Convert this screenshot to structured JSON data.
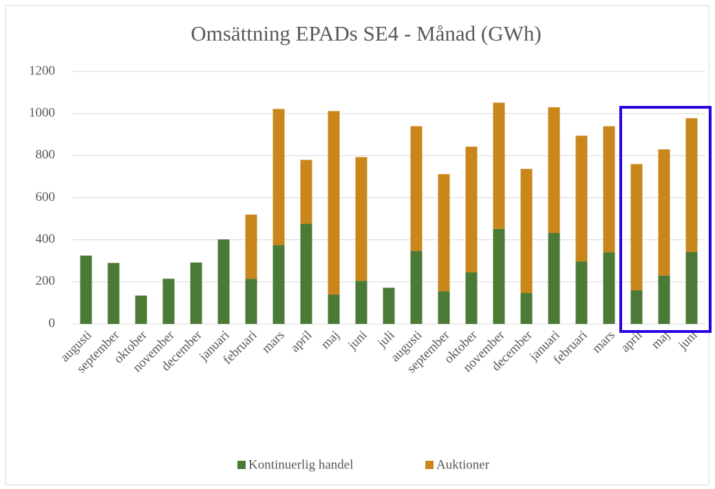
{
  "chart_data": {
    "type": "stacked_bar",
    "title": "Omsättning EPADs SE4 - Månad (GWh)",
    "categories": [
      "augusti",
      "september",
      "oktober",
      "november",
      "december",
      "januari",
      "februari",
      "mars",
      "april",
      "maj",
      "juni",
      "juli",
      "augusti",
      "september",
      "oktober",
      "november",
      "december",
      "januari",
      "februari",
      "mars",
      "april",
      "maj",
      "juni"
    ],
    "series": [
      {
        "name": "Kontinuerlig handel",
        "color": "#4a7a35",
        "values": [
          325,
          290,
          135,
          215,
          292,
          402,
          215,
          375,
          476,
          140,
          205,
          172,
          347,
          155,
          245,
          452,
          147,
          433,
          297,
          340,
          160,
          230,
          342
        ]
      },
      {
        "name": "Auktioner",
        "color": "#c8861b",
        "values": [
          0,
          0,
          0,
          0,
          0,
          0,
          305,
          647,
          304,
          872,
          588,
          0,
          593,
          557,
          598,
          600,
          590,
          597,
          598,
          600,
          600,
          600,
          636
        ]
      }
    ],
    "ylim": [
      0,
      1200
    ],
    "yticks": [
      0,
      200,
      400,
      600,
      800,
      1000,
      1200
    ],
    "grid": true,
    "legend": "bottom"
  }
}
